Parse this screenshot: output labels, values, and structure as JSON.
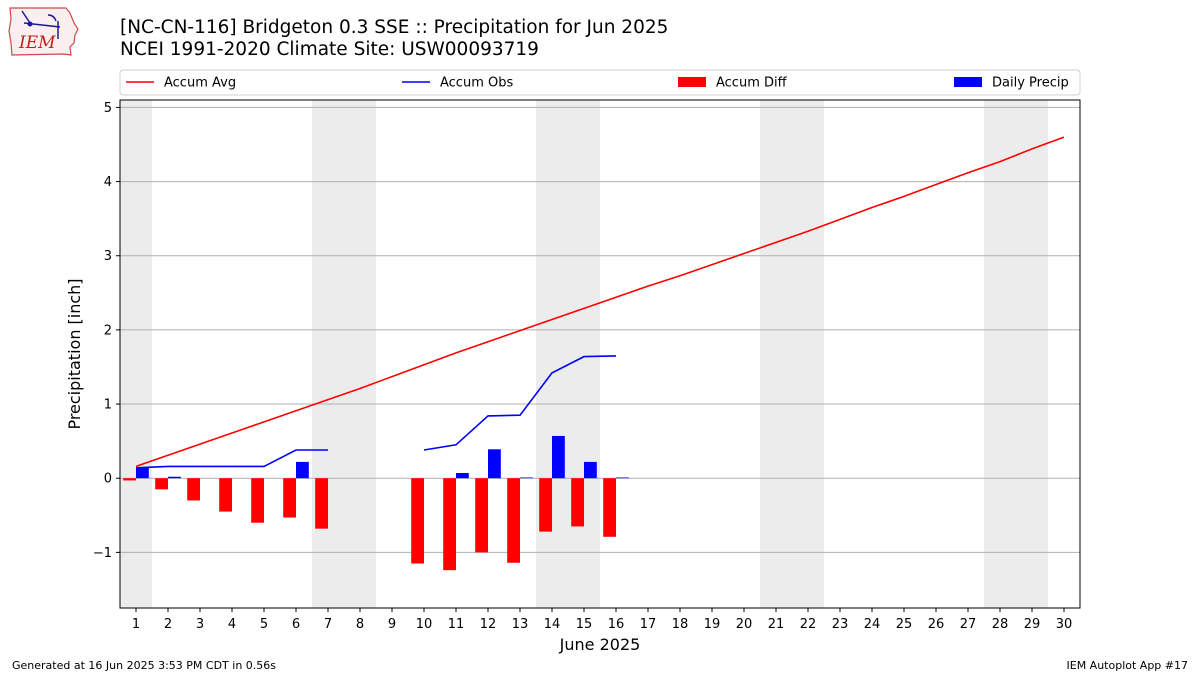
{
  "header": {
    "title_line1": "[NC-CN-116] Bridgeton 0.3 SSE :: Precipitation for Jun 2025",
    "title_line2": "NCEI 1991-2020 Climate Site: USW00093719",
    "logo_text": "IEM"
  },
  "footer": {
    "generated": "Generated at 16 Jun 2025 3:53 PM CDT in 0.56s",
    "app": "IEM Autoplot App #17"
  },
  "chart_data": {
    "type": "bar",
    "title": "[NC-CN-116] Bridgeton 0.3 SSE :: Precipitation for Jun 2025",
    "xlabel": "June 2025",
    "ylabel": "Precipitation [inch]",
    "xlim": [
      0.5,
      30.5
    ],
    "ylim": [
      -1.75,
      5.1
    ],
    "yticks": [
      -1,
      0,
      1,
      2,
      3,
      4,
      5
    ],
    "ytick_labels": [
      "−1",
      "0",
      "1",
      "2",
      "3",
      "4",
      "5"
    ],
    "x": [
      1,
      2,
      3,
      4,
      5,
      6,
      7,
      8,
      9,
      10,
      11,
      12,
      13,
      14,
      15,
      16,
      17,
      18,
      19,
      20,
      21,
      22,
      23,
      24,
      25,
      26,
      27,
      28,
      29,
      30
    ],
    "grid": "horizontal",
    "legend_position": "top",
    "weekend_shading": [
      [
        0.5,
        1.5
      ],
      [
        6.5,
        8.5
      ],
      [
        13.5,
        15.5
      ],
      [
        20.5,
        22.5
      ],
      [
        27.5,
        29.5
      ]
    ],
    "series": [
      {
        "name": "Accum Avg",
        "kind": "line",
        "color": "#ff0000",
        "values": [
          0.16,
          0.31,
          0.46,
          0.61,
          0.76,
          0.91,
          1.06,
          1.21,
          1.37,
          1.53,
          1.69,
          1.84,
          1.99,
          2.14,
          2.29,
          2.44,
          2.59,
          2.73,
          2.88,
          3.03,
          3.18,
          3.33,
          3.49,
          3.65,
          3.8,
          3.96,
          4.12,
          4.27,
          4.44,
          4.6
        ]
      },
      {
        "name": "Accum Obs",
        "kind": "line",
        "color": "#0000ff",
        "values": [
          0.14,
          0.16,
          0.16,
          0.16,
          0.16,
          0.38,
          0.38,
          null,
          null,
          0.38,
          0.45,
          0.84,
          0.85,
          1.42,
          1.64,
          1.65,
          null,
          null,
          null,
          null,
          null,
          null,
          null,
          null,
          null,
          null,
          null,
          null,
          null,
          null
        ]
      },
      {
        "name": "Accum Diff",
        "kind": "bar",
        "color": "#ff0000",
        "values": [
          -0.03,
          -0.15,
          -0.3,
          -0.45,
          -0.6,
          -0.53,
          -0.68,
          null,
          null,
          -1.15,
          -1.24,
          -1.0,
          -1.14,
          -0.72,
          -0.65,
          -0.79,
          null,
          null,
          null,
          null,
          null,
          null,
          null,
          null,
          null,
          null,
          null,
          null,
          null,
          null
        ]
      },
      {
        "name": "Daily Precip",
        "kind": "bar",
        "color": "#0000ff",
        "values": [
          0.14,
          0.02,
          0,
          0,
          0,
          0.22,
          0,
          null,
          null,
          0,
          0.07,
          0.39,
          0.01,
          0.57,
          0.22,
          0.01,
          null,
          null,
          null,
          null,
          null,
          null,
          null,
          null,
          null,
          null,
          null,
          null,
          null,
          null
        ]
      }
    ]
  }
}
